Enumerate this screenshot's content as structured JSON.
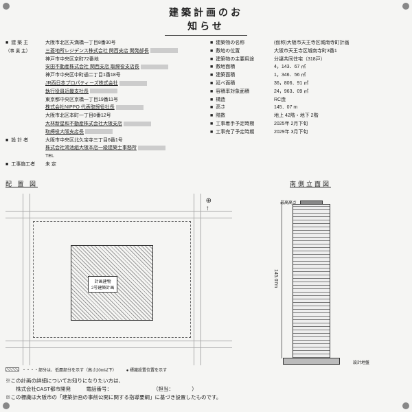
{
  "title": "建築計画のお知らせ",
  "left": [
    {
      "label": "建 築 主",
      "lines": [
        "大阪市北区天満橋一丁目8番30号",
        "三菱地所レジデンス株式会社 関西支店 開発部長",
        "神戸市中央区京町72番地",
        "安田不動産株式会社 関西支店 取締役支店長",
        "神戸市中央区中町通二丁目1番18号",
        "JR西日本プロパティーズ株式会社",
        "執行役員近畿支社長",
        "東京都中央区京橋一丁目19番11号",
        "株式会社NIPPO 代表取締役社長",
        "大阪市北区本町一丁目8番12号",
        "大林新星和不動産株式会社大阪支店",
        "取締役大阪支店長"
      ],
      "sublabel": "（事 業 主）"
    },
    {
      "label": "設 計 者",
      "lines": [
        "大阪市中央区北久宝寺三丁目6番1号",
        "株式会社鴻池組大阪本店一級建築士事務所",
        "TEL"
      ]
    },
    {
      "label": "工事施工者",
      "lines": [
        "未 定"
      ]
    }
  ],
  "right": [
    {
      "label": "建築物の名称",
      "val": "(仮称)大阪市天王寺区城南寺町計画"
    },
    {
      "label": "敷地の位置",
      "val": "大阪市天王寺区城南寺町3番1"
    },
    {
      "label": "建築物の主要用途",
      "val": "分譲共同住宅（318戸）"
    },
    {
      "label": "敷地面積",
      "val": "4，143．67 ㎡"
    },
    {
      "label": "建築面積",
      "val": "1，346．56 ㎡"
    },
    {
      "label": "延べ面積",
      "val": "36，806．91 ㎡"
    },
    {
      "label": "容積率対象面積",
      "val": "24，963．09 ㎡"
    },
    {
      "label": "構造",
      "val": "RC造"
    },
    {
      "label": "高さ",
      "val": "145．07 m"
    },
    {
      "label": "階数",
      "val": "地上 42階・地下 2階"
    },
    {
      "label": "工事着手予定時期",
      "val": "2025年 2月下旬"
    },
    {
      "label": "工事完了予定時期",
      "val": "2029年 3月下旬"
    }
  ],
  "plan_section": "配 置 図",
  "elev_section": "南側立面図",
  "plan_bldg_label1": "計画建物",
  "plan_bldg_label2": "2号建築計画",
  "legend_text": "・・・・部分は、低層部分を示す（高さ20m以下）",
  "legend_note": "● 標識設置位置を示す",
  "height_text": "145.07m",
  "elev_top": "最高高さ",
  "elev_bottom": "設計地盤",
  "footer": [
    "※この計画の詳細についてお知りになりたい方は、",
    "　　株式会社CAST都市開発　　　電話番号：　　　　　　　　　（担当：　　　　）",
    "※この標識は大阪市の「建築計画の事前公開に関する指導要綱」に基づき設置したものです。"
  ]
}
